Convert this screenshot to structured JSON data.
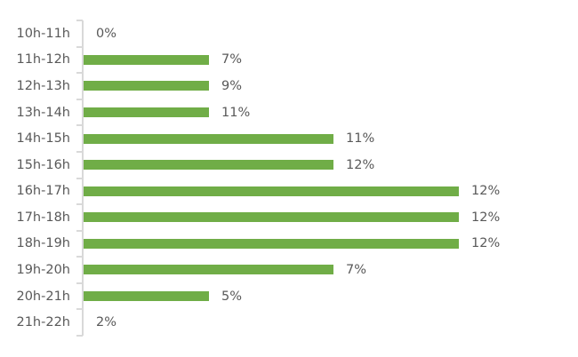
{
  "chart_data": {
    "type": "bar",
    "orientation": "horizontal",
    "title": "",
    "xlabel": "",
    "ylabel": "",
    "grid": false,
    "legend_position": "none",
    "categories": [
      "10h-11h",
      "11h-12h",
      "12h-13h",
      "13h-14h",
      "14h-15h",
      "15h-16h",
      "16h-17h",
      "17h-18h",
      "18h-19h",
      "19h-20h",
      "20h-21h",
      "21h-22h"
    ],
    "values_percent": [
      0,
      7,
      9,
      11,
      11,
      12,
      12,
      12,
      12,
      7,
      5,
      2
    ],
    "value_labels": [
      "0%",
      "7%",
      "9%",
      "11%",
      "11%",
      "12%",
      "12%",
      "12%",
      "12%",
      "7%",
      "5%",
      "2%"
    ],
    "bar_units": [
      0,
      1,
      1,
      1,
      2,
      2,
      3,
      3,
      3,
      2,
      1,
      0
    ],
    "bar_unit_max": 3,
    "colors": {
      "bar": "#70AD47",
      "axis": "#D9D9D9",
      "text": "#595959",
      "background": "#FFFFFF"
    }
  }
}
